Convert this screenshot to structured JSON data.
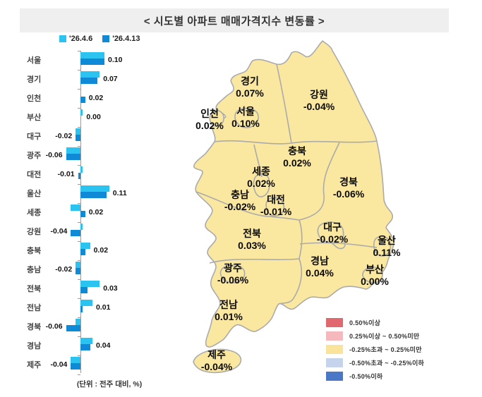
{
  "title": "< 시도별 아파트 매매가격지수 변동률 >",
  "unit_note": "(단위 : 전주 대비, %)",
  "colors": {
    "series_prev": "#2bc4f1",
    "series_curr": "#0e8ad6",
    "map_fill": "#fae7a0",
    "map_border": "#ababab"
  },
  "chart_data": {
    "type": "bar",
    "orientation": "horizontal",
    "title": "시도별 아파트 매매가격지수 변동률",
    "unit": "% (전주 대비)",
    "categories": [
      "서울",
      "경기",
      "인천",
      "부산",
      "대구",
      "광주",
      "대전",
      "울산",
      "세종",
      "강원",
      "충북",
      "충남",
      "전북",
      "전남",
      "경북",
      "경남",
      "제주"
    ],
    "series": [
      {
        "name": "'26.4.6",
        "values": [
          0.1,
          0.08,
          0.0,
          0.01,
          -0.02,
          -0.06,
          0.01,
          0.12,
          -0.04,
          0.01,
          0.04,
          -0.02,
          0.08,
          0.05,
          -0.02,
          0.05,
          -0.04
        ]
      },
      {
        "name": "'26.4.13",
        "values": [
          0.1,
          0.07,
          0.02,
          0.0,
          -0.02,
          -0.06,
          -0.01,
          0.11,
          0.02,
          -0.04,
          0.02,
          -0.02,
          0.03,
          0.01,
          -0.06,
          0.04,
          -0.04
        ]
      }
    ],
    "value_labels_series": "'26.4.13",
    "xlim": [
      -0.12,
      0.15
    ],
    "grid": false,
    "legend_position": "top-left"
  },
  "map": {
    "regions": [
      {
        "name": "경기",
        "value": "0.07%"
      },
      {
        "name": "강원",
        "value": "-0.04%"
      },
      {
        "name": "인천",
        "value": "0.02%"
      },
      {
        "name": "서울",
        "value": "0.10%"
      },
      {
        "name": "충북",
        "value": "0.02%"
      },
      {
        "name": "세종",
        "value": "0.02%"
      },
      {
        "name": "충남",
        "value": "-0.02%"
      },
      {
        "name": "대전",
        "value": "-0.01%"
      },
      {
        "name": "경북",
        "value": "-0.06%"
      },
      {
        "name": "전북",
        "value": "0.03%"
      },
      {
        "name": "대구",
        "value": "-0.02%"
      },
      {
        "name": "울산",
        "value": "0.11%"
      },
      {
        "name": "광주",
        "value": "-0.06%"
      },
      {
        "name": "경남",
        "value": "0.04%"
      },
      {
        "name": "부산",
        "value": "0.00%"
      },
      {
        "name": "전남",
        "value": "0.01%"
      },
      {
        "name": "제주",
        "value": "-0.04%"
      }
    ],
    "legend": [
      {
        "color": "#e2686f",
        "label": "0.50%이상"
      },
      {
        "color": "#f5b8bc",
        "label": "0.25%이상 ~ 0.50%미만"
      },
      {
        "color": "#fae49b",
        "label": "-0.25%초과 ~ 0.25%미만"
      },
      {
        "color": "#c5d3ed",
        "label": "-0.50%초과 ~ -0.25%이하"
      },
      {
        "color": "#4a77c6",
        "label": "-0.50%이하"
      }
    ]
  }
}
